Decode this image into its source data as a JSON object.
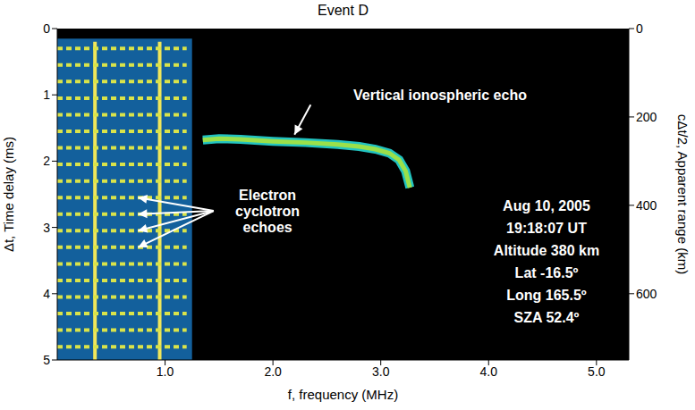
{
  "chart_data": {
    "type": "line",
    "title": "Event D",
    "x_label": "f, frequency (MHz)",
    "y_label": "Δt, Time delay (ms)",
    "y2_label": "cΔt/2, Apparent range (km)",
    "xlim": [
      0,
      5.3
    ],
    "xticks": [
      {
        "value": 1,
        "label": "1.0"
      },
      {
        "value": 2,
        "label": "2.0"
      },
      {
        "value": 3,
        "label": "3.0"
      },
      {
        "value": 4,
        "label": "4.0"
      },
      {
        "value": 5,
        "label": "5.0"
      }
    ],
    "ylim": [
      0,
      5
    ],
    "yticks": [
      0,
      1,
      2,
      3,
      4,
      5
    ],
    "y2lim": [
      0,
      750
    ],
    "y2ticks": [
      0,
      200,
      400,
      600
    ],
    "grid": false,
    "series": [
      {
        "color": "#9be04a",
        "line_style": "solid",
        "x": [
          1.35,
          1.5,
          1.7,
          2.0,
          2.3,
          2.6,
          2.8,
          2.95,
          3.08,
          3.17,
          3.23,
          3.27
        ],
        "values": [
          1.68,
          1.66,
          1.67,
          1.7,
          1.72,
          1.75,
          1.78,
          1.82,
          1.88,
          1.98,
          2.15,
          2.4
        ]
      }
    ],
    "regions": [
      {
        "color": "#13609c",
        "x": [
          0,
          1.25
        ],
        "y": [
          0.15,
          5
        ]
      }
    ],
    "vertical_lines": {
      "color": "#f0e65a",
      "frequencies": [
        0.35,
        0.95
      ],
      "delays": [
        0.2,
        5
      ]
    },
    "cyclotron_echoes": {
      "color": "#d9e34a",
      "line_style": "dashed",
      "x": [
        0,
        1.2
      ],
      "delays": [
        0.3,
        0.55,
        0.8,
        1.05,
        1.3,
        1.55,
        1.8,
        2.05,
        2.3,
        2.55,
        2.8,
        3.05,
        3.3,
        3.55,
        3.8,
        4.05,
        4.3,
        4.55,
        4.8
      ]
    },
    "annotations": [
      {
        "text": "Vertical ionospheric echo",
        "x": 3.55,
        "y": 1.0,
        "arrows": [
          [
            2.35,
            1.15,
            2.2,
            1.6
          ]
        ]
      },
      {
        "text": "Electron cyclotron echoes",
        "x": 1.95,
        "y": 2.75,
        "arrows": [
          [
            1.45,
            2.75,
            0.75,
            2.55
          ],
          [
            1.45,
            2.75,
            0.75,
            2.8
          ],
          [
            1.45,
            2.75,
            0.75,
            3.05
          ],
          [
            1.45,
            2.75,
            0.75,
            3.3
          ]
        ]
      }
    ],
    "info": [
      "Aug 10, 2005",
      "19:18:07 UT",
      "Altitude 380 km",
      "Lat -16.5º",
      "Long 165.5º",
      "SZA 52.4º"
    ]
  }
}
